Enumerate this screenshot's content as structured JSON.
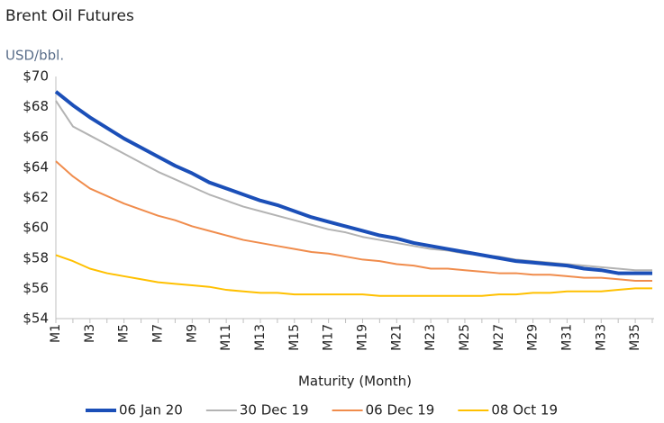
{
  "chart_data": {
    "type": "line",
    "title": "Brent Oil Futures",
    "y_unit_label": "USD/bbl.",
    "x_label": "Maturity (Month)",
    "categories": [
      "M1",
      null,
      "M3",
      null,
      "M5",
      null,
      "M7",
      null,
      "M9",
      null,
      "M11",
      null,
      "M13",
      null,
      "M15",
      null,
      "M17",
      null,
      "M19",
      null,
      "M21",
      null,
      "M23",
      null,
      "M25",
      null,
      "M27",
      null,
      "M29",
      null,
      "M31",
      null,
      "M33",
      null,
      "M35",
      null
    ],
    "series": [
      {
        "name": "06 Jan 20",
        "color": "#1b4fb8",
        "values": [
          69.0,
          68.1,
          67.3,
          66.6,
          65.9,
          65.3,
          64.7,
          64.1,
          63.6,
          63.0,
          62.6,
          62.2,
          61.8,
          61.5,
          61.1,
          60.7,
          60.4,
          60.1,
          59.8,
          59.5,
          59.3,
          59.0,
          58.8,
          58.6,
          58.4,
          58.2,
          58.0,
          57.8,
          57.7,
          57.6,
          57.5,
          57.3,
          57.2,
          57.0,
          57.0,
          57.0
        ]
      },
      {
        "name": "30 Dec 19",
        "color": "#b3b3b3",
        "values": [
          68.4,
          66.7,
          66.1,
          65.5,
          64.9,
          64.3,
          63.7,
          63.2,
          62.7,
          62.2,
          61.8,
          61.4,
          61.1,
          60.8,
          60.5,
          60.2,
          59.9,
          59.7,
          59.4,
          59.2,
          59.0,
          58.8,
          58.6,
          58.5,
          58.3,
          58.2,
          58.1,
          57.9,
          57.8,
          57.7,
          57.6,
          57.5,
          57.4,
          57.3,
          57.2,
          57.2
        ]
      },
      {
        "name": "06 Dec 19",
        "color": "#f08c4c",
        "values": [
          64.4,
          63.4,
          62.6,
          62.1,
          61.6,
          61.2,
          60.8,
          60.5,
          60.1,
          59.8,
          59.5,
          59.2,
          59.0,
          58.8,
          58.6,
          58.4,
          58.3,
          58.1,
          57.9,
          57.8,
          57.6,
          57.5,
          57.3,
          57.3,
          57.2,
          57.1,
          57.0,
          57.0,
          56.9,
          56.9,
          56.8,
          56.7,
          56.7,
          56.6,
          56.5,
          56.5
        ]
      },
      {
        "name": "08 Oct 19",
        "color": "#ffc000",
        "values": [
          58.2,
          57.8,
          57.3,
          57.0,
          56.8,
          56.6,
          56.4,
          56.3,
          56.2,
          56.1,
          55.9,
          55.8,
          55.7,
          55.7,
          55.6,
          55.6,
          55.6,
          55.6,
          55.6,
          55.5,
          55.5,
          55.5,
          55.5,
          55.5,
          55.5,
          55.5,
          55.6,
          55.6,
          55.7,
          55.7,
          55.8,
          55.8,
          55.8,
          55.9,
          56.0,
          56.0
        ]
      }
    ],
    "ylim": [
      54,
      70
    ],
    "yticks": [
      {
        "value": 54,
        "label": "$54"
      },
      {
        "value": 56,
        "label": "$56"
      },
      {
        "value": 58,
        "label": "$58"
      },
      {
        "value": 60,
        "label": "$60"
      },
      {
        "value": 62,
        "label": "$62"
      },
      {
        "value": 64,
        "label": "$64"
      },
      {
        "value": 66,
        "label": "$66"
      },
      {
        "value": 68,
        "label": "$68"
      },
      {
        "value": 70,
        "label": "$70"
      }
    ],
    "grid": false,
    "legend": "bottom"
  }
}
